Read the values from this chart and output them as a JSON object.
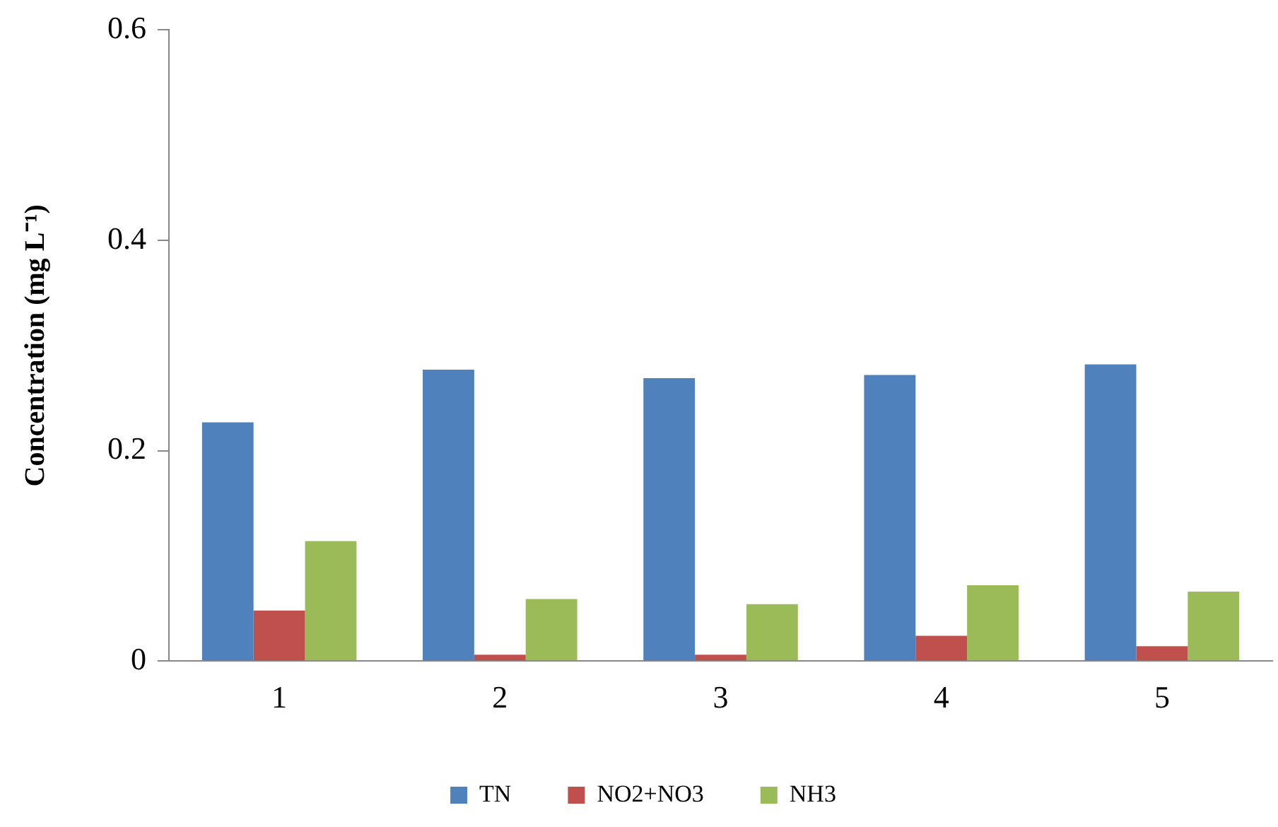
{
  "chart_data": {
    "type": "bar",
    "ylabel": "Concentration (mg L⁻¹)",
    "categories": [
      "1",
      "2",
      "3",
      "4",
      "5"
    ],
    "series": [
      {
        "name": "TN",
        "color": "#4f81bd",
        "values": [
          0.227,
          0.277,
          0.269,
          0.272,
          0.282
        ]
      },
      {
        "name": "NO2+NO3",
        "color": "#c0504d",
        "values": [
          0.048,
          0.006,
          0.006,
          0.024,
          0.014
        ]
      },
      {
        "name": "NH3",
        "color": "#9bbb59",
        "values": [
          0.114,
          0.059,
          0.054,
          0.072,
          0.066
        ]
      }
    ],
    "ylim": [
      0,
      0.6
    ],
    "yticks": [
      0,
      0.2,
      0.4,
      0.6
    ],
    "grid": false,
    "legend": "bottom"
  }
}
